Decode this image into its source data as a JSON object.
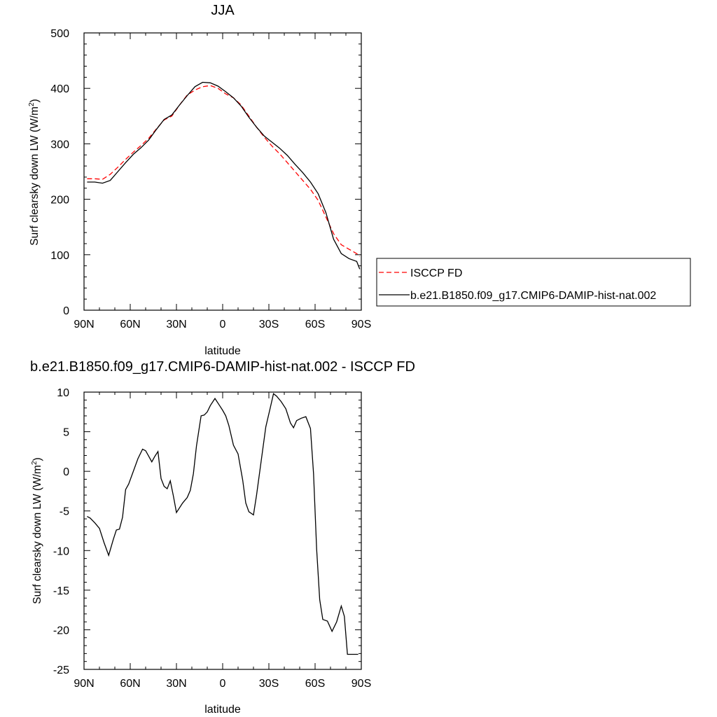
{
  "colors": {
    "obs": "#ff0000",
    "model": "#000000",
    "axis": "#000000",
    "background": "#ffffff"
  },
  "tick_labels": [
    "90N",
    "60N",
    "30N",
    "0",
    "30S",
    "60S",
    "90S"
  ],
  "chart_data": [
    {
      "type": "line",
      "title": "JJA",
      "xlabel": "latitude",
      "ylabel_main": "Surf clearsky down LW (W/m",
      "ylabel_sup": "2",
      "ylabel_close": ")",
      "x_direction": "north-to-south",
      "xlim": [
        90,
        -90
      ],
      "xticks": [
        90,
        60,
        30,
        0,
        -30,
        -60,
        -90
      ],
      "ylim": [
        0,
        500
      ],
      "yticks": [
        0,
        100,
        200,
        300,
        400,
        500
      ],
      "grid": false,
      "legend_position": "right, outside plot",
      "x": [
        88,
        83,
        78,
        73,
        68,
        63,
        58,
        53,
        48,
        43,
        38,
        33,
        28,
        23,
        18,
        13,
        8,
        3,
        -2,
        -7,
        -12,
        -17,
        -22,
        -27,
        -32,
        -37,
        -42,
        -47,
        -52,
        -57,
        -62,
        -67,
        -72,
        -77,
        -82,
        -87,
        -89
      ],
      "series": [
        {
          "name": "ISCCP FD",
          "style": "dashed",
          "values": [
            237,
            237,
            236,
            245,
            258,
            272,
            285,
            297,
            310,
            327,
            343,
            350,
            370,
            388,
            397,
            403,
            405,
            400,
            390,
            383,
            370,
            350,
            330,
            312,
            296,
            282,
            266,
            250,
            234,
            218,
            198,
            168,
            138,
            118,
            110,
            102,
            97
          ]
        },
        {
          "name": "b.e21.B1850.f09_g17.CMIP6-DAMIP-hist-nat.002",
          "style": "solid",
          "values": [
            231,
            231,
            229,
            234,
            250,
            266,
            281,
            293,
            307,
            326,
            344,
            352,
            370,
            387,
            403,
            411,
            410,
            404,
            394,
            383,
            368,
            348,
            330,
            314,
            303,
            292,
            279,
            263,
            248,
            231,
            210,
            176,
            128,
            102,
            93,
            88,
            74
          ]
        }
      ]
    },
    {
      "type": "line",
      "title": "b.e21.B1850.f09_g17.CMIP6-DAMIP-hist-nat.002 - ISCCP FD",
      "xlabel": "latitude",
      "ylabel_main": "Surf clearsky down LW (W/m",
      "ylabel_sup": "2",
      "ylabel_close": ")",
      "x_direction": "north-to-south",
      "xlim": [
        90,
        -90
      ],
      "xticks": [
        90,
        60,
        30,
        0,
        -30,
        -60,
        -90
      ],
      "ylim": [
        -25,
        10
      ],
      "yticks": [
        -25,
        -20,
        -15,
        -10,
        -5,
        0,
        5,
        10
      ],
      "grid": false,
      "x": [
        88,
        86,
        83,
        80,
        77,
        74,
        71,
        69,
        67,
        65,
        63,
        61,
        58,
        55,
        52,
        50,
        48,
        46,
        44,
        42,
        40,
        38,
        36,
        34,
        32,
        30,
        26,
        23,
        21,
        19,
        17,
        14,
        12,
        10,
        8,
        5,
        2,
        0,
        -2,
        -4,
        -7,
        -10,
        -13,
        -15,
        -17,
        -20,
        -22,
        -25,
        -28,
        -31,
        -33,
        -35,
        -38,
        -41,
        -44,
        -46,
        -48,
        -51,
        -54,
        -57,
        -59,
        -61,
        -63,
        -65,
        -68,
        -71,
        -74,
        -77,
        -79,
        -81,
        -84,
        -86,
        -88
      ],
      "values": [
        -5.7,
        -5.9,
        -6.5,
        -7.2,
        -9.0,
        -10.6,
        -8.6,
        -7.4,
        -7.3,
        -5.8,
        -2.3,
        -1.6,
        0.0,
        1.6,
        2.8,
        2.6,
        1.9,
        1.2,
        1.9,
        2.5,
        -0.9,
        -1.9,
        -2.2,
        -1.2,
        -3.1,
        -5.2,
        -4.0,
        -3.3,
        -2.4,
        -0.3,
        3.2,
        7.0,
        7.1,
        7.5,
        8.3,
        9.2,
        8.3,
        7.7,
        7.0,
        5.8,
        3.3,
        2.2,
        -1.1,
        -4.0,
        -5.1,
        -5.5,
        -3.0,
        1.3,
        5.6,
        8.1,
        9.8,
        9.5,
        8.8,
        7.9,
        6.1,
        5.5,
        6.4,
        6.7,
        6.9,
        5.4,
        -0.3,
        -9.8,
        -16.2,
        -18.7,
        -18.9,
        -20.2,
        -19.0,
        -17.0,
        -18.3,
        -23.1,
        -23.1,
        -23.1,
        -23.1
      ]
    }
  ]
}
